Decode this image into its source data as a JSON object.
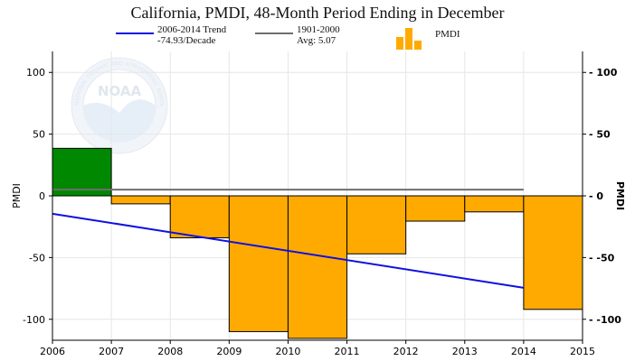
{
  "colors": {
    "trend": "#1010e0",
    "average": "#6e6e6e",
    "positive_bar": "#008800",
    "negative_bar": "#ffaa00",
    "grid": "#e6e6e6",
    "axis": "#000000"
  },
  "legend": {
    "trend_line1": "2006-2014 Trend",
    "trend_line2": "-74.93/Decade",
    "avg_line1": "1901-2000",
    "avg_line2": "Avg: 5.07",
    "bars_label": "PMDI"
  },
  "watermark": {
    "logo_text": "NOAA",
    "ring_text": "NATIONAL OCEANIC AND ATMOSPHERIC ADMINISTRATION"
  },
  "chart_data": {
    "type": "bar",
    "title": "California, PMDI, 48-Month Period Ending in December",
    "xlabel": "",
    "ylabel": "PMDI",
    "ylabel_right": "PMDI",
    "xlim": [
      2006,
      2015
    ],
    "ylim": [
      -117,
      117
    ],
    "x_ticks": [
      "2006",
      "2007",
      "2008",
      "2009",
      "2010",
      "2011",
      "2012",
      "2013",
      "2014",
      "2015"
    ],
    "y_ticks_left": [
      "100",
      "50",
      "0",
      "-50",
      "-100"
    ],
    "y_ticks_right": [
      "100",
      "50",
      "0",
      "-50",
      "-100"
    ],
    "grid": true,
    "categories": [
      "2006",
      "2007",
      "2008",
      "2009",
      "2010",
      "2011",
      "2012",
      "2013",
      "2014"
    ],
    "values": [
      38.5,
      -6.5,
      -34,
      -110,
      -115.5,
      -47,
      -20.5,
      -13,
      -92
    ],
    "trend": {
      "name": "2006-2014 Trend",
      "x": [
        2006,
        2014
      ],
      "y": [
        -14.5,
        -74.5
      ]
    },
    "average": {
      "name": "1901-2000 Avg",
      "value": 5.07,
      "x": [
        2006,
        2014
      ]
    }
  }
}
